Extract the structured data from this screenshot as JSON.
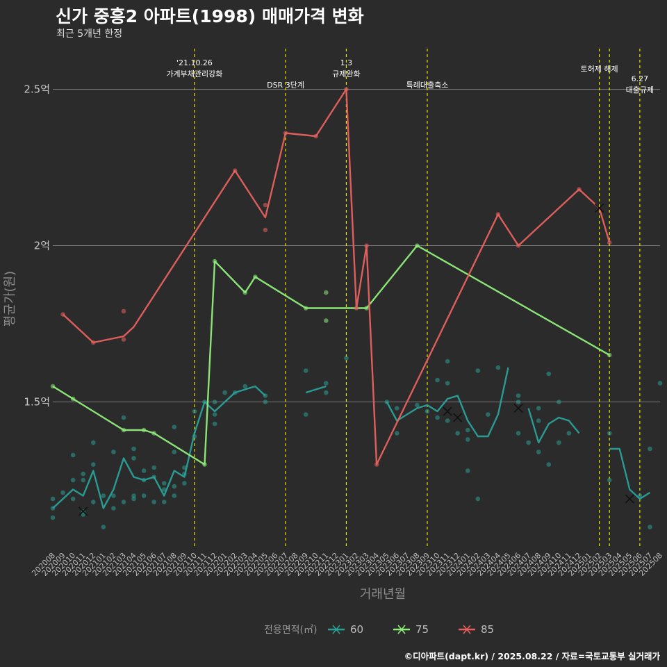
{
  "title": "신가 중흥2 아파트(1998) 매매가격 변화",
  "subtitle": "최근 5개년 한정",
  "caption": "©디아파트(dapt.kr) / 2025.08.22 / 자료=국토교통부 실거래가",
  "chart_data": {
    "type": "line",
    "title": "신가 중흥2 아파트(1998) 매매가격 변화",
    "subtitle": "최근 5개년 한정",
    "xlabel": "거래년월",
    "ylabel": "평균가(원)",
    "categories": [
      "202008",
      "202009",
      "202010",
      "202011",
      "202012",
      "202101",
      "202102",
      "202103",
      "202104",
      "202105",
      "202106",
      "202107",
      "202108",
      "202109",
      "202110",
      "202111",
      "202112",
      "202201",
      "202202",
      "202203",
      "202204",
      "202205",
      "202206",
      "202207",
      "202208",
      "202209",
      "202210",
      "202211",
      "202212",
      "202301",
      "202302",
      "202303",
      "202304",
      "202305",
      "202306",
      "202307",
      "202308",
      "202309",
      "202310",
      "202311",
      "202312",
      "202401",
      "202402",
      "202403",
      "202404",
      "202405",
      "202406",
      "202407",
      "202408",
      "202409",
      "202410",
      "202411",
      "202412",
      "202501",
      "202502",
      "202503",
      "202504",
      "202505",
      "202506",
      "202507",
      "202508"
    ],
    "yticks": [
      1.5,
      2.0,
      2.5
    ],
    "ytick_labels": [
      "1.5억",
      "2억",
      "2.5억"
    ],
    "ylim": [
      1.03,
      2.63
    ],
    "ylim_unit": "억",
    "legend_title": "전용면적(㎡)",
    "legend_position": "bottom",
    "grid": "horizontal major lines",
    "series": [
      {
        "name": "60",
        "color": "#2aa198",
        "segments": [
          [
            [
              "202008",
              1.16
            ],
            [
              "202009",
              1.19
            ],
            [
              "202010",
              1.22
            ],
            [
              "202011",
              1.2
            ],
            [
              "202012",
              1.28
            ],
            [
              "202101",
              1.16
            ],
            [
              "202102",
              1.22
            ],
            [
              "202103",
              1.32
            ],
            [
              "202104",
              1.26
            ],
            [
              "202105",
              1.25
            ],
            [
              "202106",
              1.26
            ],
            [
              "202107",
              1.2
            ],
            [
              "202108",
              1.28
            ],
            [
              "202109",
              1.26
            ],
            [
              "202110",
              1.4
            ],
            [
              "202111",
              1.5
            ],
            [
              "202112",
              1.47
            ],
            [
              "202201",
              1.5
            ],
            [
              "202202",
              1.53
            ],
            [
              "202203",
              1.54
            ],
            [
              "202204",
              1.55
            ],
            [
              "202205",
              1.52
            ]
          ],
          [
            [
              "202209",
              1.53
            ],
            [
              "202210",
              1.54
            ],
            [
              "202211",
              1.55
            ]
          ],
          [
            [
              "202305",
              1.5
            ],
            [
              "202306",
              1.44
            ],
            [
              "202307",
              1.46
            ],
            [
              "202308",
              1.48
            ],
            [
              "202309",
              1.49
            ],
            [
              "202310",
              1.47
            ],
            [
              "202311",
              1.51
            ],
            [
              "202312",
              1.52
            ],
            [
              "202401",
              1.44
            ],
            [
              "202402",
              1.39
            ],
            [
              "202403",
              1.39
            ],
            [
              "202404",
              1.46
            ],
            [
              "202405",
              1.61
            ]
          ],
          [
            [
              "202407",
              1.48
            ],
            [
              "202408",
              1.37
            ],
            [
              "202409",
              1.43
            ],
            [
              "202410",
              1.45
            ],
            [
              "202411",
              1.44
            ],
            [
              "202412",
              1.4
            ]
          ],
          [
            [
              "202503",
              1.35
            ],
            [
              "202504",
              1.35
            ],
            [
              "202505",
              1.22
            ],
            [
              "202506",
              1.19
            ],
            [
              "202507",
              1.21
            ]
          ]
        ],
        "points": [
          [
            "202008",
            1.16
          ],
          [
            "202008",
            1.13
          ],
          [
            "202008",
            1.19
          ],
          [
            "202009",
            1.21
          ],
          [
            "202010",
            1.25
          ],
          [
            "202010",
            1.19
          ],
          [
            "202010",
            1.33
          ],
          [
            "202011",
            1.14
          ],
          [
            "202011",
            1.15
          ],
          [
            "202011",
            1.27
          ],
          [
            "202011",
            1.25
          ],
          [
            "202012",
            1.37
          ],
          [
            "202012",
            1.3
          ],
          [
            "202012",
            1.18
          ],
          [
            "202101",
            1.2
          ],
          [
            "202101",
            1.1
          ],
          [
            "202102",
            1.16
          ],
          [
            "202102",
            1.34
          ],
          [
            "202102",
            1.2
          ],
          [
            "202103",
            1.45
          ],
          [
            "202103",
            1.18
          ],
          [
            "202104",
            1.35
          ],
          [
            "202104",
            1.32
          ],
          [
            "202104",
            1.19
          ],
          [
            "202104",
            1.2
          ],
          [
            "202105",
            1.28
          ],
          [
            "202105",
            1.25
          ],
          [
            "202105",
            1.2
          ],
          [
            "202106",
            1.29
          ],
          [
            "202106",
            1.26
          ],
          [
            "202106",
            1.18
          ],
          [
            "202107",
            1.22
          ],
          [
            "202107",
            1.18
          ],
          [
            "202107",
            1.24
          ],
          [
            "202108",
            1.34
          ],
          [
            "202108",
            1.42
          ],
          [
            "202108",
            1.2
          ],
          [
            "202108",
            1.23
          ],
          [
            "202109",
            1.27
          ],
          [
            "202109",
            1.29
          ],
          [
            "202109",
            1.24
          ],
          [
            "202110",
            1.47
          ],
          [
            "202110",
            1.39
          ],
          [
            "202111",
            1.5
          ],
          [
            "202112",
            1.43
          ],
          [
            "202112",
            1.46
          ],
          [
            "202112",
            1.5
          ],
          [
            "202201",
            1.53
          ],
          [
            "202202",
            1.53
          ],
          [
            "202203",
            1.55
          ],
          [
            "202205",
            1.52
          ],
          [
            "202205",
            1.5
          ],
          [
            "202209",
            1.6
          ],
          [
            "202209",
            1.46
          ],
          [
            "202211",
            1.56
          ],
          [
            "202211",
            1.53
          ],
          [
            "202301",
            1.64
          ],
          [
            "202305",
            1.5
          ],
          [
            "202306",
            1.4
          ],
          [
            "202306",
            1.48
          ],
          [
            "202308",
            1.49
          ],
          [
            "202309",
            1.47
          ],
          [
            "202310",
            1.57
          ],
          [
            "202310",
            1.45
          ],
          [
            "202311",
            1.63
          ],
          [
            "202311",
            1.56
          ],
          [
            "202311",
            1.44
          ],
          [
            "202312",
            1.4
          ],
          [
            "202401",
            1.28
          ],
          [
            "202401",
            1.41
          ],
          [
            "202401",
            1.38
          ],
          [
            "202402",
            1.6
          ],
          [
            "202402",
            1.19
          ],
          [
            "202403",
            1.46
          ],
          [
            "202404",
            1.61
          ],
          [
            "202406",
            1.52
          ],
          [
            "202406",
            1.4
          ],
          [
            "202406",
            1.5
          ],
          [
            "202407",
            1.37
          ],
          [
            "202408",
            1.44
          ],
          [
            "202408",
            1.34
          ],
          [
            "202408",
            1.48
          ],
          [
            "202409",
            1.3
          ],
          [
            "202409",
            1.59
          ],
          [
            "202410",
            1.5
          ],
          [
            "202410",
            1.37
          ],
          [
            "202411",
            1.4
          ],
          [
            "202503",
            1.4
          ],
          [
            "202503",
            1.25
          ],
          [
            "202506",
            1.2
          ],
          [
            "202507",
            1.35
          ],
          [
            "202507",
            1.1
          ],
          [
            "202508",
            1.56
          ]
        ],
        "x_markers": [
          [
            "202011",
            1.15
          ],
          [
            "202311",
            1.47
          ],
          [
            "202312",
            1.45
          ],
          [
            "202406",
            1.48
          ],
          [
            "202505",
            1.19
          ]
        ]
      },
      {
        "name": "75",
        "color": "#90ee7a",
        "segments": [
          [
            [
              "202008",
              1.55
            ],
            [
              "202010",
              1.51
            ],
            [
              "202103",
              1.41
            ],
            [
              "202105",
              1.41
            ],
            [
              "202106",
              1.4
            ],
            [
              "202111",
              1.3
            ],
            [
              "202112",
              1.95
            ],
            [
              "202203",
              1.85
            ],
            [
              "202204",
              1.9
            ],
            [
              "202209",
              1.8
            ],
            [
              "202211",
              1.8
            ],
            [
              "202303",
              1.8
            ],
            [
              "202308",
              2.0
            ],
            [
              "202503",
              1.65
            ]
          ]
        ],
        "points": [
          [
            "202008",
            1.55
          ],
          [
            "202010",
            1.51
          ],
          [
            "202103",
            1.41
          ],
          [
            "202105",
            1.41
          ],
          [
            "202106",
            1.4
          ],
          [
            "202111",
            1.3
          ],
          [
            "202112",
            1.95
          ],
          [
            "202203",
            1.85
          ],
          [
            "202204",
            1.9
          ],
          [
            "202209",
            1.8
          ],
          [
            "202211",
            1.85
          ],
          [
            "202211",
            1.76
          ],
          [
            "202303",
            1.8
          ],
          [
            "202308",
            2.0
          ],
          [
            "202503",
            1.65
          ]
        ],
        "x_markers": []
      },
      {
        "name": "85",
        "color": "#e8615f",
        "segments": [
          [
            [
              "202009",
              1.78
            ],
            [
              "202012",
              1.69
            ],
            [
              "202103",
              1.71
            ],
            [
              "202104",
              1.74
            ],
            [
              "202202",
              2.24
            ],
            [
              "202205",
              2.09
            ],
            [
              "202207",
              2.36
            ],
            [
              "202210",
              2.35
            ],
            [
              "202301",
              2.5
            ],
            [
              "202302",
              1.8
            ],
            [
              "202303",
              2.0
            ],
            [
              "202304",
              1.3
            ],
            [
              "202404",
              2.1
            ],
            [
              "202406",
              2.0
            ],
            [
              "202412",
              2.18
            ],
            [
              "202502",
              2.12
            ],
            [
              "202503",
              2.01
            ]
          ]
        ],
        "points": [
          [
            "202009",
            1.78
          ],
          [
            "202012",
            1.69
          ],
          [
            "202103",
            1.79
          ],
          [
            "202103",
            1.7
          ],
          [
            "202202",
            2.24
          ],
          [
            "202205",
            2.13
          ],
          [
            "202205",
            2.05
          ],
          [
            "202207",
            2.36
          ],
          [
            "202210",
            2.35
          ],
          [
            "202301",
            2.5
          ],
          [
            "202302",
            1.8
          ],
          [
            "202303",
            2.0
          ],
          [
            "202304",
            1.3
          ],
          [
            "202404",
            2.1
          ],
          [
            "202406",
            2.0
          ],
          [
            "202412",
            2.18
          ],
          [
            "202503",
            2.01
          ]
        ],
        "x_markers": [
          [
            "202502",
            2.12
          ]
        ]
      }
    ],
    "events": [
      {
        "x": "202110",
        "lines": [
          "'21.10.26",
          "가계부채관리강화"
        ],
        "position": "top"
      },
      {
        "x": "202207",
        "lines": [
          "DSR 3단계"
        ],
        "position": "low"
      },
      {
        "x": "202301",
        "lines": [
          "1.3",
          "규제완화"
        ],
        "position": "top"
      },
      {
        "x": "202309",
        "lines": [
          "특례대출축소"
        ],
        "position": "low"
      },
      {
        "x": "202502",
        "lines": [
          "토허제 해제"
        ],
        "position": "mid"
      },
      {
        "x": "202503",
        "lines": [],
        "position": "none"
      },
      {
        "x": "202506",
        "lines": [
          "6.27",
          "대출규제"
        ],
        "position": "bottom"
      }
    ]
  }
}
